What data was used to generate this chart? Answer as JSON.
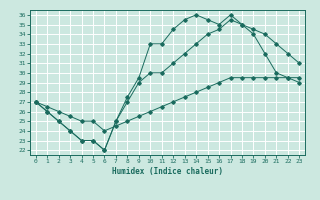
{
  "title": "",
  "xlabel": "Humidex (Indice chaleur)",
  "ylabel": "",
  "bg_color": "#cce8e0",
  "line_color": "#1a6b5e",
  "grid_color": "#ffffff",
  "xlim": [
    -0.5,
    23.5
  ],
  "ylim": [
    21.5,
    36.5
  ],
  "yticks": [
    22,
    23,
    24,
    25,
    26,
    27,
    28,
    29,
    30,
    31,
    32,
    33,
    34,
    35,
    36
  ],
  "xticks": [
    0,
    1,
    2,
    3,
    4,
    5,
    6,
    7,
    8,
    9,
    10,
    11,
    12,
    13,
    14,
    15,
    16,
    17,
    18,
    19,
    20,
    21,
    22,
    23
  ],
  "line1": {
    "x": [
      0,
      1,
      2,
      3,
      4,
      5,
      6,
      7,
      8,
      9,
      10,
      11,
      12,
      13,
      14,
      15,
      16,
      17,
      18,
      19,
      20,
      21,
      22,
      23
    ],
    "y": [
      27,
      26,
      25,
      24,
      23,
      23,
      22,
      25,
      27.5,
      29.5,
      33,
      33,
      34.5,
      35.5,
      36,
      35.5,
      35,
      36,
      35,
      34,
      32,
      30,
      29.5,
      29
    ]
  },
  "line2": {
    "x": [
      0,
      1,
      2,
      3,
      4,
      5,
      6,
      7,
      8,
      9,
      10,
      11,
      12,
      13,
      14,
      15,
      16,
      17,
      18,
      19,
      20,
      21,
      22,
      23
    ],
    "y": [
      27,
      26,
      25,
      24,
      23,
      23,
      22,
      25,
      27,
      29,
      30,
      30,
      31,
      32,
      33,
      34,
      34.5,
      35.5,
      35,
      34.5,
      34,
      33,
      32,
      31
    ]
  },
  "line3": {
    "x": [
      0,
      1,
      2,
      3,
      4,
      5,
      6,
      7,
      8,
      9,
      10,
      11,
      12,
      13,
      14,
      15,
      16,
      17,
      18,
      19,
      20,
      21,
      22,
      23
    ],
    "y": [
      27,
      26.5,
      26,
      25.5,
      25,
      25,
      24,
      24.5,
      25,
      25.5,
      26,
      26.5,
      27,
      27.5,
      28,
      28.5,
      29,
      29.5,
      29.5,
      29.5,
      29.5,
      29.5,
      29.5,
      29.5
    ]
  }
}
